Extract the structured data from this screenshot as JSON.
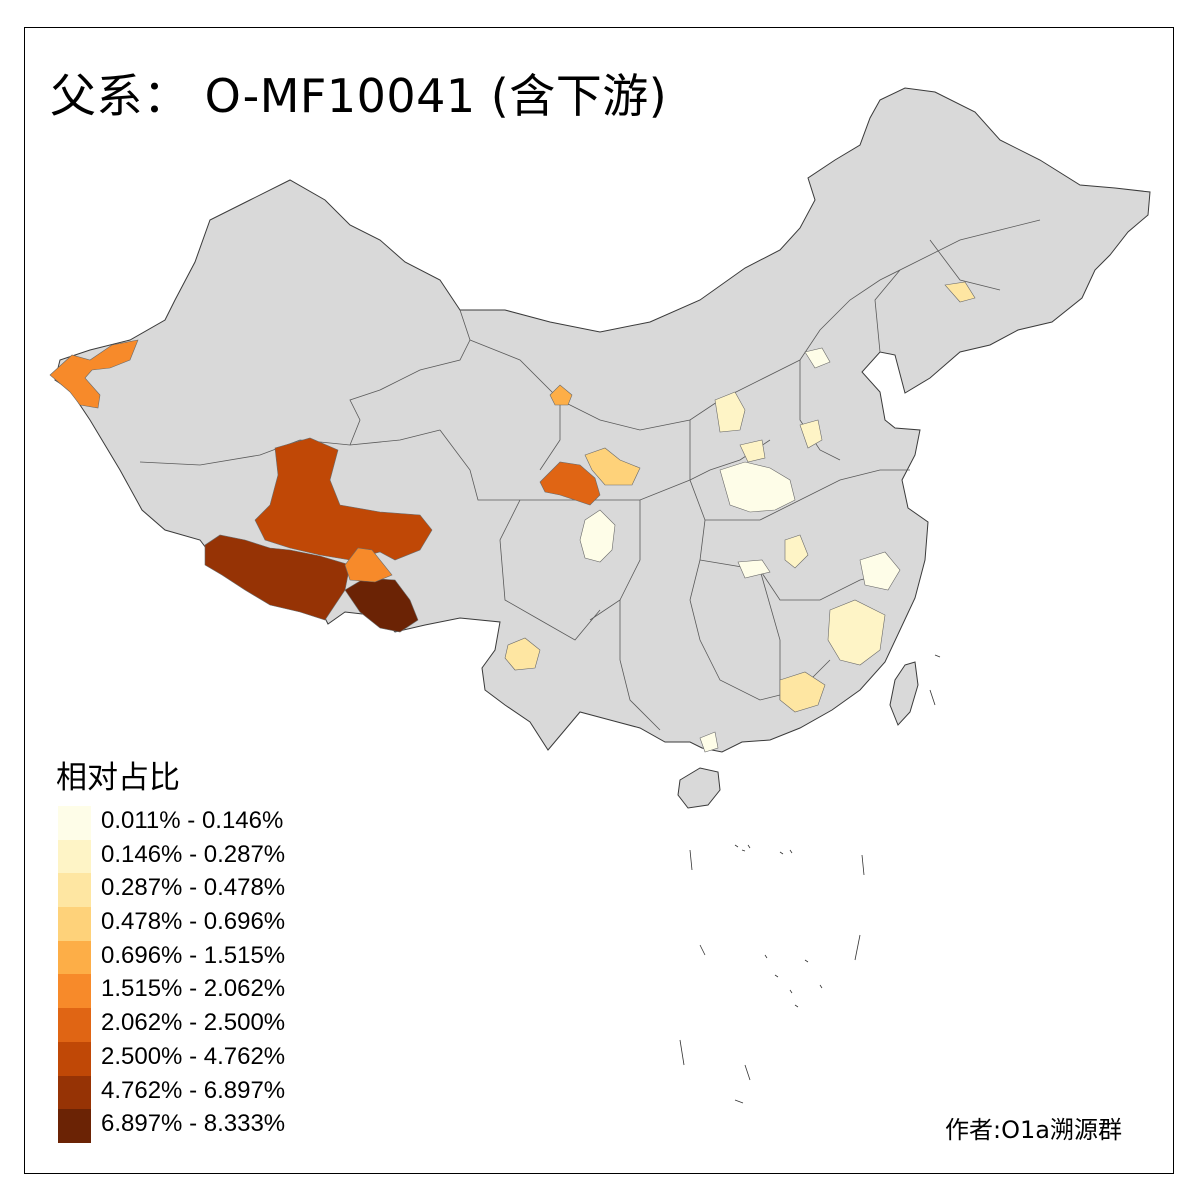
{
  "title": "父系： O-MF10041 (含下游)",
  "legend": {
    "title": "相对占比",
    "items": [
      {
        "label": "0.011% - 0.146%",
        "color": "#fefde8"
      },
      {
        "label": "0.146% - 0.287%",
        "color": "#fef4c6"
      },
      {
        "label": "0.287% - 0.478%",
        "color": "#fee6a2"
      },
      {
        "label": "0.478% - 0.696%",
        "color": "#fed27a"
      },
      {
        "label": "0.696% - 1.515%",
        "color": "#fdae47"
      },
      {
        "label": "1.515% - 2.062%",
        "color": "#f78a2a"
      },
      {
        "label": "2.062% - 2.500%",
        "color": "#e06514"
      },
      {
        "label": "2.500% - 4.762%",
        "color": "#c04806"
      },
      {
        "label": "4.762% - 6.897%",
        "color": "#963305"
      },
      {
        "label": "6.897% - 8.333%",
        "color": "#6b2305"
      }
    ]
  },
  "credit": "作者:O1a溯源群",
  "colors": {
    "land": "#d9d9d9",
    "border": "#444444",
    "frame": "#000000"
  }
}
